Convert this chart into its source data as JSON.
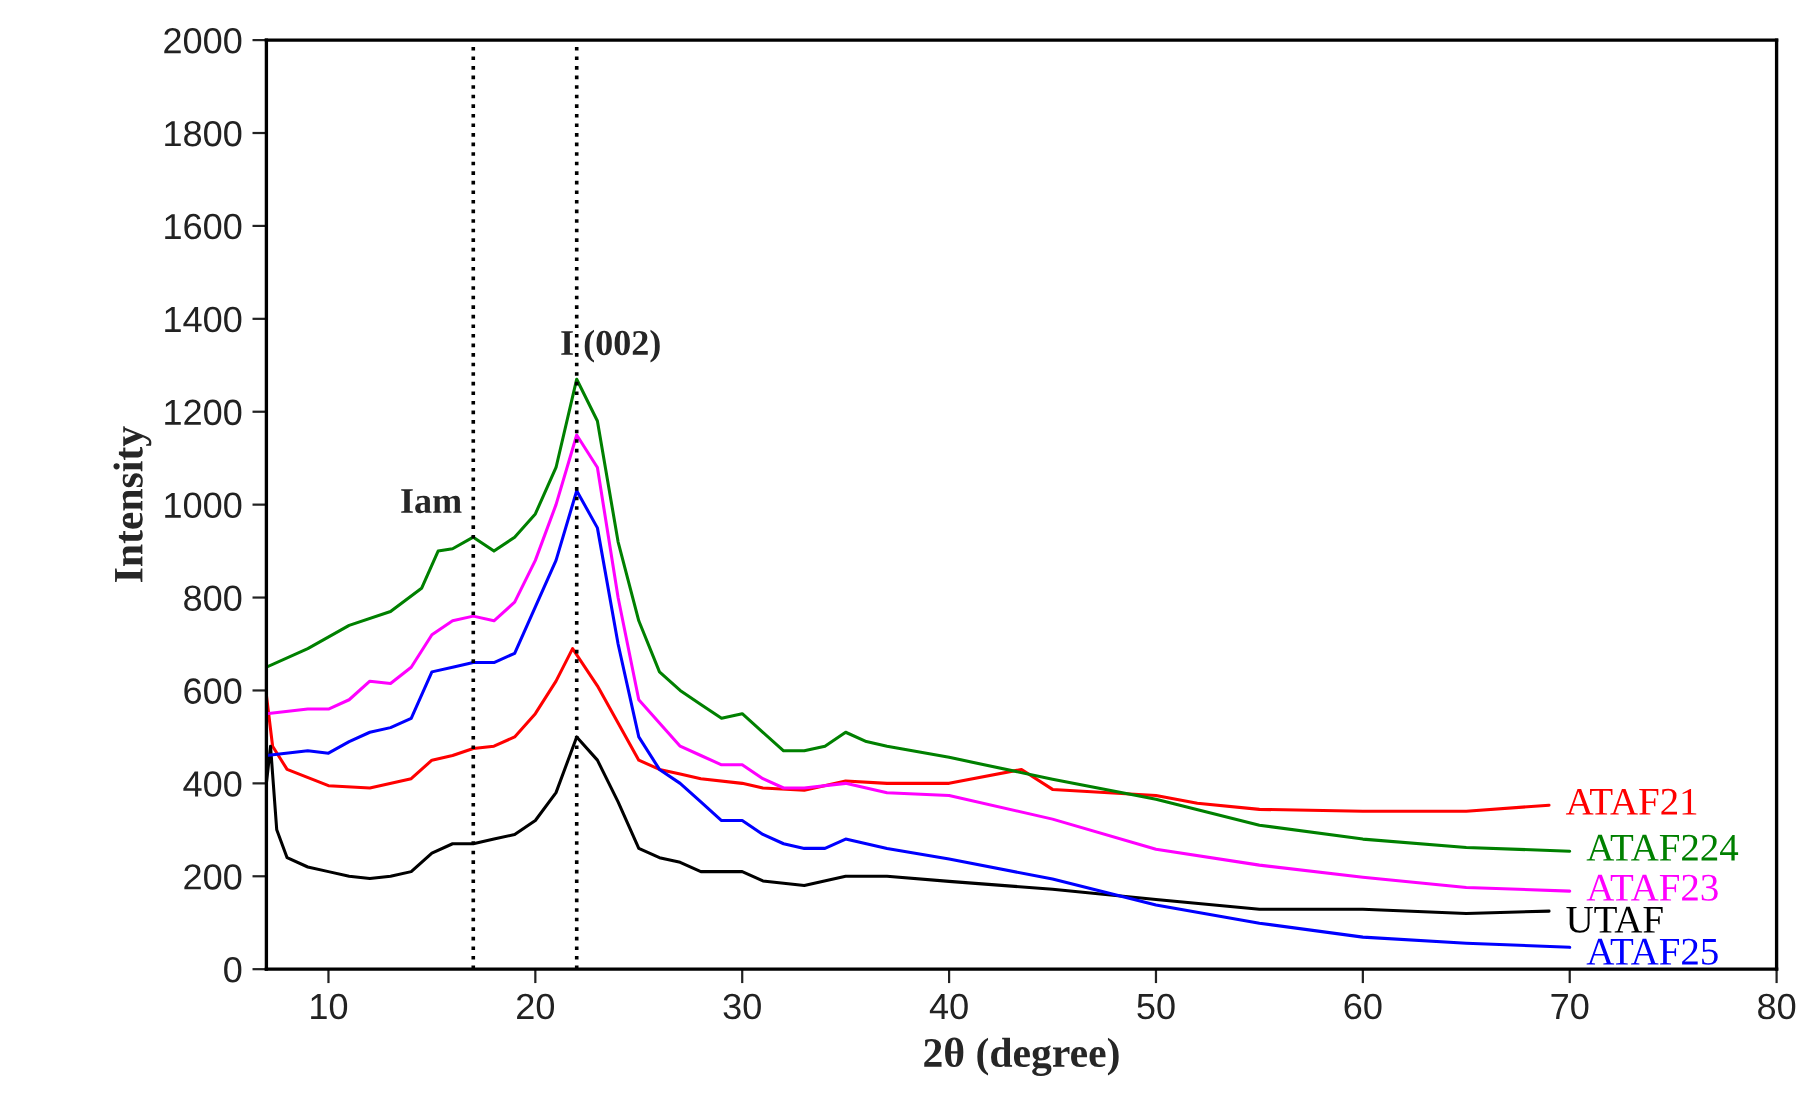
{
  "chart_data": {
    "type": "line",
    "xlabel": "2θ (degree)",
    "ylabel": "Intensity",
    "xlim": [
      7,
      80
    ],
    "xticks": [
      10,
      20,
      30,
      40,
      50,
      60,
      70,
      80
    ],
    "ylim": [
      0,
      2000
    ],
    "yticks": [
      0,
      200,
      400,
      600,
      800,
      1000,
      1200,
      1400,
      1600,
      1800,
      2000
    ],
    "grid": false,
    "marker": "none",
    "line_style": "solid",
    "ref_lines": [
      {
        "axis": "x",
        "value": 17,
        "line_style": "dotted",
        "color": "#000000"
      },
      {
        "axis": "x",
        "value": 22,
        "line_style": "dotted",
        "color": "#000000"
      }
    ],
    "annotations": [
      {
        "text": "Iam",
        "x": 17,
        "y": 930
      },
      {
        "text": "I (002)",
        "x": 22,
        "y": 1270
      }
    ],
    "series": [
      {
        "name": "ATAF21",
        "color": "#ff0000",
        "x": [
          7,
          7.3,
          8,
          10,
          12,
          14,
          15,
          16,
          17,
          18,
          19,
          20,
          21,
          21.8,
          23,
          24,
          25,
          26,
          27,
          28,
          30,
          31,
          33,
          35,
          37,
          40,
          43.5,
          45,
          50,
          52,
          55,
          60,
          65,
          69
        ],
        "values": [
          590,
          480,
          430,
          395,
          390,
          410,
          450,
          460,
          475,
          480,
          500,
          550,
          620,
          690,
          610,
          530,
          450,
          430,
          420,
          410,
          400,
          390,
          385,
          405,
          400,
          400,
          430,
          387,
          374,
          357,
          344,
          340,
          340,
          353
        ]
      },
      {
        "name": "ATAF224",
        "color": "#008000",
        "x": [
          7,
          9,
          11,
          13,
          14.5,
          15.3,
          16,
          17,
          18,
          19,
          20,
          21,
          22,
          23,
          24,
          25,
          26,
          27,
          28,
          29,
          30,
          31,
          32,
          33,
          34,
          35,
          36,
          37,
          40,
          45,
          50,
          55,
          60,
          65,
          70
        ],
        "values": [
          650,
          690,
          740,
          770,
          820,
          900,
          905,
          930,
          900,
          930,
          980,
          1080,
          1270,
          1180,
          920,
          750,
          640,
          600,
          570,
          540,
          550,
          510,
          470,
          470,
          480,
          510,
          490,
          480,
          456,
          409,
          366,
          310,
          280,
          262,
          254
        ]
      },
      {
        "name": "ATAF23",
        "color": "#ff00ff",
        "x": [
          7,
          9,
          10,
          11,
          12,
          13,
          14,
          15,
          16,
          17,
          18,
          19,
          20,
          21,
          22,
          23,
          24,
          25,
          26,
          27,
          28,
          29,
          30,
          31,
          32,
          33,
          35,
          37,
          40,
          45,
          50,
          55,
          60,
          65,
          70
        ],
        "values": [
          550,
          560,
          560,
          580,
          620,
          615,
          650,
          720,
          750,
          760,
          750,
          790,
          880,
          1000,
          1150,
          1080,
          800,
          580,
          530,
          480,
          460,
          440,
          440,
          410,
          390,
          390,
          400,
          380,
          374,
          323,
          258,
          224,
          198,
          176,
          168
        ]
      },
      {
        "name": "UTAF",
        "color": "#000000",
        "x": [
          7,
          7.2,
          7.5,
          8,
          9,
          10,
          11,
          12,
          13,
          14,
          15,
          16,
          17,
          18,
          19,
          20,
          21,
          22,
          23,
          24,
          25,
          26,
          27,
          28,
          30,
          31,
          33,
          35,
          37,
          40,
          45,
          50,
          55,
          60,
          65,
          69
        ],
        "values": [
          400,
          480,
          300,
          240,
          220,
          210,
          200,
          195,
          200,
          210,
          250,
          270,
          270,
          280,
          290,
          320,
          380,
          500,
          450,
          360,
          260,
          240,
          230,
          210,
          210,
          190,
          180,
          200,
          200,
          189,
          172,
          150,
          129,
          129,
          120,
          125
        ]
      },
      {
        "name": "ATAF25",
        "color": "#0000ff",
        "x": [
          7,
          9,
          10,
          11,
          12,
          13,
          14,
          15,
          16,
          17,
          18,
          19,
          20,
          21,
          22,
          23,
          24,
          25,
          26,
          27,
          28,
          29,
          30,
          31,
          32,
          33,
          34,
          35,
          36,
          37,
          40,
          45,
          50,
          55,
          60,
          65,
          70
        ],
        "values": [
          460,
          470,
          465,
          490,
          510,
          520,
          540,
          640,
          650,
          660,
          660,
          680,
          780,
          880,
          1030,
          950,
          700,
          500,
          430,
          400,
          360,
          320,
          320,
          290,
          270,
          260,
          260,
          280,
          270,
          260,
          237,
          194,
          138,
          99,
          69,
          56,
          47
        ]
      }
    ]
  }
}
